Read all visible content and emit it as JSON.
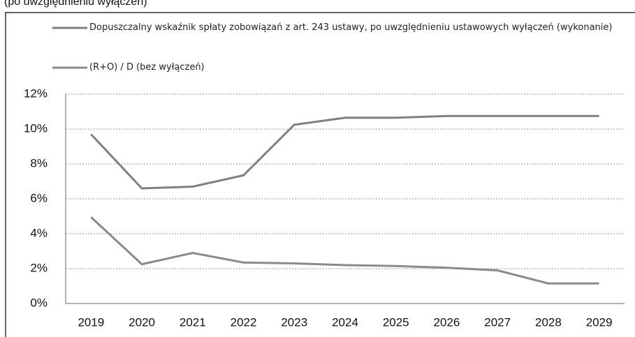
{
  "chart_data": {
    "type": "line",
    "title": "(po uwzględnieniu wyłączeń)",
    "categories": [
      "2019",
      "2020",
      "2021",
      "2022",
      "2023",
      "2024",
      "2025",
      "2026",
      "2027",
      "2028",
      "2029"
    ],
    "series": [
      {
        "name": "Dopuszczalny wskaźnik spłaty zobowiązań z art. 243 ustawy, po uwzględnieniu ustawowych wyłączeń (wykonanie)",
        "color": "#7f7f7f",
        "values": [
          9.7,
          6.6,
          6.7,
          7.35,
          10.25,
          10.65,
          10.65,
          10.75,
          10.75,
          10.75,
          10.75
        ]
      },
      {
        "name": "(R+O) / D (bez wyłączeń)",
        "color": "#8a8a8a",
        "values": [
          4.95,
          2.25,
          2.9,
          2.35,
          2.3,
          2.2,
          2.15,
          2.05,
          1.9,
          1.15,
          1.15
        ]
      }
    ],
    "ylim": [
      0,
      12
    ],
    "yticks": [
      {
        "value": 0,
        "label": "0%"
      },
      {
        "value": 2,
        "label": "2%"
      },
      {
        "value": 4,
        "label": "4%"
      },
      {
        "value": 6,
        "label": "6%"
      },
      {
        "value": 8,
        "label": "8%"
      },
      {
        "value": 10,
        "label": "10%"
      },
      {
        "value": 12,
        "label": "12%"
      }
    ],
    "grid": true
  }
}
